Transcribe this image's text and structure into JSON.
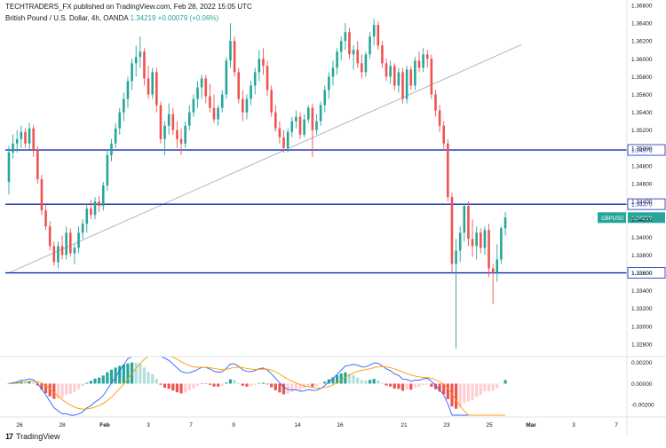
{
  "header": {
    "publisher": "TECHTRADERS_FX published on TradingView.com, Feb 28, 2022 15:05 UTC",
    "symbol": "British Pound / U.S. Dollar, 4h, OANDA",
    "last": "1.34219",
    "change": "+0.00079 (+0.06%)"
  },
  "branding": {
    "logo_text": "TradingView",
    "logo_mark": "17"
  },
  "colors": {
    "up": "#26a69a",
    "down": "#ef5350",
    "level_line": "#0d2bb5",
    "trend_line": "#b2b5be",
    "macd_line": "#2962ff",
    "signal_line": "#ff9800",
    "hist_up_strong": "#26a69a",
    "hist_up_weak": "#b2dfdb",
    "hist_down_strong": "#ef5350",
    "hist_down_weak": "#ffcdd2"
  },
  "chart_data": {
    "type": "candlestick",
    "title": "",
    "price_axis": {
      "range": [
        1.3268,
        1.366
      ],
      "ticks": [
        "1.36600",
        "1.36400",
        "1.36200",
        "1.36000",
        "1.35800",
        "1.35600",
        "1.35400",
        "1.35200",
        "1.35000",
        "1.34800",
        "1.34600",
        "1.34400",
        "1.34200",
        "1.34000",
        "1.33800",
        "1.33600",
        "1.33400",
        "1.33200",
        "1.33000",
        "1.32800"
      ]
    },
    "x_axis": {
      "labels": [
        "26",
        "28",
        "Feb",
        "3",
        "7",
        "9",
        "14",
        "16",
        "21",
        "23",
        "25",
        "Mar",
        "3",
        "7"
      ],
      "bold": [
        "Feb",
        "Mar"
      ]
    },
    "horizontal_levels": [
      {
        "price": 1.34978,
        "label": "1.34978"
      },
      {
        "price": 1.3437,
        "label": "1.34370"
      },
      {
        "price": 1.336,
        "label": "1.33600"
      }
    ],
    "trendline": {
      "start": {
        "bar": 0,
        "price": 1.336
      },
      "end": {
        "bar": 125,
        "price": 1.3616
      }
    },
    "last_price_label": {
      "symbol": "GBPUSD",
      "price": "1.34219"
    },
    "candles_ohlc": [
      [
        1.3462,
        1.3502,
        1.3448,
        1.3495
      ],
      [
        1.3495,
        1.3515,
        1.3488,
        1.3505
      ],
      [
        1.3505,
        1.352,
        1.3495,
        1.351
      ],
      [
        1.351,
        1.3525,
        1.35,
        1.3518
      ],
      [
        1.3518,
        1.3522,
        1.35,
        1.3505
      ],
      [
        1.3505,
        1.3528,
        1.3498,
        1.3522
      ],
      [
        1.3522,
        1.3526,
        1.349,
        1.3498
      ],
      [
        1.3498,
        1.3502,
        1.346,
        1.3465
      ],
      [
        1.3465,
        1.347,
        1.3425,
        1.343
      ],
      [
        1.343,
        1.3436,
        1.3408,
        1.3412
      ],
      [
        1.3412,
        1.3418,
        1.3385,
        1.339
      ],
      [
        1.339,
        1.3395,
        1.3368,
        1.3372
      ],
      [
        1.3372,
        1.3395,
        1.3365,
        1.339
      ],
      [
        1.339,
        1.3402,
        1.3375,
        1.338
      ],
      [
        1.338,
        1.3412,
        1.3375,
        1.3405
      ],
      [
        1.3405,
        1.341,
        1.3378,
        1.3382
      ],
      [
        1.3382,
        1.3392,
        1.337,
        1.3388
      ],
      [
        1.3388,
        1.3412,
        1.3382,
        1.3405
      ],
      [
        1.3405,
        1.342,
        1.3398,
        1.3415
      ],
      [
        1.3415,
        1.3438,
        1.3405,
        1.3432
      ],
      [
        1.3432,
        1.3442,
        1.342,
        1.3425
      ],
      [
        1.3425,
        1.3445,
        1.342,
        1.344
      ],
      [
        1.344,
        1.3446,
        1.3428,
        1.3435
      ],
      [
        1.3435,
        1.3462,
        1.343,
        1.3458
      ],
      [
        1.3458,
        1.3498,
        1.3452,
        1.3492
      ],
      [
        1.3492,
        1.351,
        1.3485,
        1.3505
      ],
      [
        1.3505,
        1.3528,
        1.35,
        1.3522
      ],
      [
        1.3522,
        1.3545,
        1.3515,
        1.354
      ],
      [
        1.354,
        1.3562,
        1.353,
        1.3555
      ],
      [
        1.3555,
        1.358,
        1.3545,
        1.3575
      ],
      [
        1.3575,
        1.36,
        1.3565,
        1.3595
      ],
      [
        1.3595,
        1.3615,
        1.358,
        1.3602
      ],
      [
        1.3602,
        1.3625,
        1.359,
        1.3608
      ],
      [
        1.3608,
        1.3612,
        1.357,
        1.3578
      ],
      [
        1.3578,
        1.3592,
        1.3555,
        1.356
      ],
      [
        1.356,
        1.359,
        1.3555,
        1.3585
      ],
      [
        1.3585,
        1.359,
        1.354,
        1.3548
      ],
      [
        1.3548,
        1.3552,
        1.3505,
        1.351
      ],
      [
        1.351,
        1.353,
        1.3492,
        1.3525
      ],
      [
        1.3525,
        1.355,
        1.3515,
        1.3538
      ],
      [
        1.3538,
        1.3545,
        1.3515,
        1.352
      ],
      [
        1.352,
        1.353,
        1.35,
        1.351
      ],
      [
        1.351,
        1.3522,
        1.3492,
        1.3505
      ],
      [
        1.3505,
        1.353,
        1.35,
        1.3525
      ],
      [
        1.3525,
        1.3548,
        1.352,
        1.354
      ],
      [
        1.354,
        1.356,
        1.3535,
        1.3555
      ],
      [
        1.3555,
        1.3575,
        1.3545,
        1.3568
      ],
      [
        1.3568,
        1.3582,
        1.3555,
        1.3578
      ],
      [
        1.3578,
        1.3582,
        1.355,
        1.3558
      ],
      [
        1.3558,
        1.3572,
        1.354,
        1.3545
      ],
      [
        1.3545,
        1.356,
        1.3528,
        1.3532
      ],
      [
        1.3532,
        1.3548,
        1.3525,
        1.3545
      ],
      [
        1.3545,
        1.3565,
        1.354,
        1.356
      ],
      [
        1.356,
        1.3602,
        1.3555,
        1.3598
      ],
      [
        1.3598,
        1.364,
        1.359,
        1.362
      ],
      [
        1.362,
        1.3625,
        1.358,
        1.3585
      ],
      [
        1.3585,
        1.359,
        1.355,
        1.3555
      ],
      [
        1.3555,
        1.3565,
        1.353,
        1.354
      ],
      [
        1.354,
        1.356,
        1.3532,
        1.3555
      ],
      [
        1.3555,
        1.3575,
        1.3548,
        1.357
      ],
      [
        1.357,
        1.359,
        1.356,
        1.3585
      ],
      [
        1.3585,
        1.361,
        1.3575,
        1.36
      ],
      [
        1.36,
        1.3612,
        1.3582,
        1.3592
      ],
      [
        1.3592,
        1.3598,
        1.3558,
        1.3565
      ],
      [
        1.3565,
        1.357,
        1.3535,
        1.354
      ],
      [
        1.354,
        1.3548,
        1.3518,
        1.3522
      ],
      [
        1.3522,
        1.353,
        1.3505,
        1.3512
      ],
      [
        1.3512,
        1.352,
        1.3495,
        1.35
      ],
      [
        1.35,
        1.3522,
        1.3495,
        1.3518
      ],
      [
        1.3518,
        1.3535,
        1.3512,
        1.353
      ],
      [
        1.353,
        1.3542,
        1.3522,
        1.3535
      ],
      [
        1.3535,
        1.354,
        1.351,
        1.3515
      ],
      [
        1.3515,
        1.3538,
        1.3512,
        1.3532
      ],
      [
        1.3532,
        1.3548,
        1.3528,
        1.3545
      ],
      [
        1.3545,
        1.355,
        1.349,
        1.352
      ],
      [
        1.352,
        1.3538,
        1.3515,
        1.353
      ],
      [
        1.353,
        1.3552,
        1.3525,
        1.3548
      ],
      [
        1.3548,
        1.357,
        1.354,
        1.3565
      ],
      [
        1.3565,
        1.3585,
        1.3555,
        1.358
      ],
      [
        1.358,
        1.3598,
        1.357,
        1.359
      ],
      [
        1.359,
        1.3612,
        1.3582,
        1.3608
      ],
      [
        1.3608,
        1.3625,
        1.3598,
        1.362
      ],
      [
        1.362,
        1.364,
        1.361,
        1.363
      ],
      [
        1.363,
        1.3635,
        1.36,
        1.3605
      ],
      [
        1.3605,
        1.3615,
        1.3588,
        1.361
      ],
      [
        1.361,
        1.362,
        1.359,
        1.3595
      ],
      [
        1.3595,
        1.3605,
        1.3578,
        1.3585
      ],
      [
        1.3585,
        1.3608,
        1.358,
        1.3605
      ],
      [
        1.3605,
        1.363,
        1.36,
        1.3625
      ],
      [
        1.3625,
        1.3645,
        1.3615,
        1.3638
      ],
      [
        1.3638,
        1.3642,
        1.361,
        1.3615
      ],
      [
        1.3615,
        1.362,
        1.359,
        1.3595
      ],
      [
        1.3595,
        1.36,
        1.3575,
        1.358
      ],
      [
        1.358,
        1.3598,
        1.3572,
        1.3592
      ],
      [
        1.3592,
        1.3595,
        1.3565,
        1.357
      ],
      [
        1.357,
        1.359,
        1.3562,
        1.3585
      ],
      [
        1.3585,
        1.359,
        1.355,
        1.3555
      ],
      [
        1.3555,
        1.3592,
        1.355,
        1.3588
      ],
      [
        1.3588,
        1.3592,
        1.3565,
        1.357
      ],
      [
        1.357,
        1.3602,
        1.3565,
        1.3598
      ],
      [
        1.3598,
        1.3608,
        1.3585,
        1.359
      ],
      [
        1.359,
        1.3612,
        1.3585,
        1.3605
      ],
      [
        1.3605,
        1.361,
        1.359,
        1.36
      ],
      [
        1.36,
        1.3605,
        1.3555,
        1.356
      ],
      [
        1.356,
        1.3565,
        1.3535,
        1.3542
      ],
      [
        1.3542,
        1.3548,
        1.3518,
        1.3525
      ],
      [
        1.3525,
        1.353,
        1.3498,
        1.3505
      ],
      [
        1.3505,
        1.351,
        1.344,
        1.3445
      ],
      [
        1.3445,
        1.345,
        1.336,
        1.337
      ],
      [
        1.337,
        1.3398,
        1.3275,
        1.3385
      ],
      [
        1.3385,
        1.3412,
        1.3372,
        1.3405
      ],
      [
        1.3405,
        1.3438,
        1.3395,
        1.3435
      ],
      [
        1.3435,
        1.344,
        1.339,
        1.3398
      ],
      [
        1.3398,
        1.342,
        1.3378,
        1.339
      ],
      [
        1.339,
        1.3412,
        1.3375,
        1.3405
      ],
      [
        1.3405,
        1.341,
        1.3382,
        1.3388
      ],
      [
        1.3388,
        1.3412,
        1.338,
        1.3408
      ],
      [
        1.3408,
        1.3415,
        1.3355,
        1.3365
      ],
      [
        1.3365,
        1.337,
        1.3325,
        1.336
      ],
      [
        1.336,
        1.3392,
        1.335,
        1.3375
      ],
      [
        1.3375,
        1.3412,
        1.337,
        1.341
      ],
      [
        1.341,
        1.3428,
        1.3402,
        1.3422
      ]
    ],
    "macd": {
      "axis_ticks": [
        "0.00200",
        "0.00000",
        "-0.00200"
      ],
      "range": [
        -0.003,
        0.0024
      ]
    }
  }
}
